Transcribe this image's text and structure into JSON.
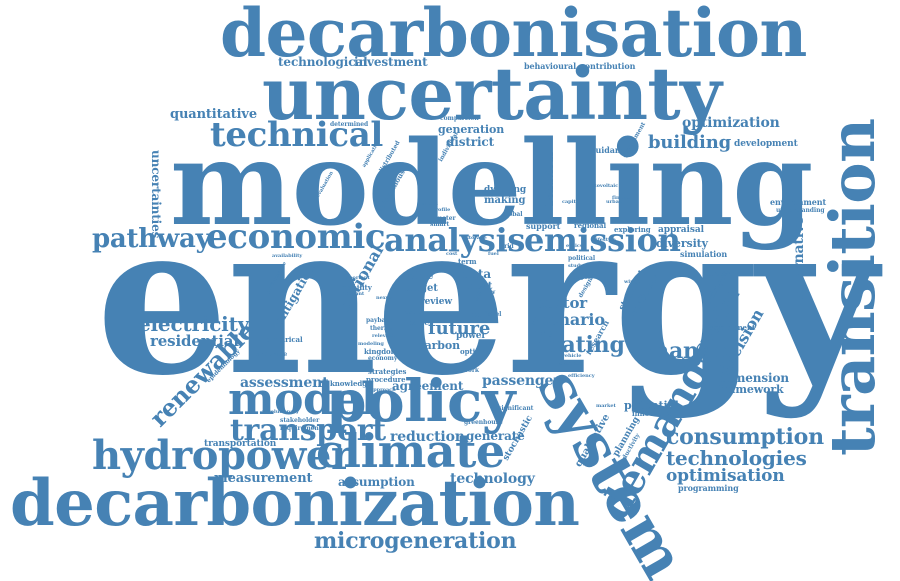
{
  "words": {
    "energy": "energy",
    "modelling": "modelling",
    "uncertainty": "uncertainty",
    "decarbonisation": "decarbonisation",
    "decarbonization": "decarbonization",
    "transition": "transition",
    "system": "system",
    "policy": "policy",
    "model": "model",
    "climate": "climate",
    "hydropower": "hydropower",
    "transport": "transport",
    "technical": "technical",
    "economic": "economic",
    "analysis": "analysis",
    "emission": "emission",
    "pathway": "pathway",
    "demand": "demand",
    "microgeneration": "microgeneration",
    "consumption": "consumption",
    "technologies": "technologies",
    "optimisation": "optimisation",
    "technology": "technology",
    "renewable": "renewable",
    "electricity": "electricity",
    "residential": "residential",
    "assessment": "assessment",
    "measurement": "measurement",
    "transportation": "transportation",
    "assumption": "assumption",
    "reduction": "reduction",
    "generate": "generate",
    "agreement": "agreement",
    "passenger": "passenger",
    "heating": "heating",
    "change": "change",
    "future": "future",
    "scenario": "scenario",
    "sector": "sector",
    "ecuador": "ecuador",
    "decision": "decision",
    "dimension": "dimension",
    "framework": "framework",
    "potential": "potential",
    "innovation": "innovation",
    "building": "building",
    "development": "development",
    "optimization": "optimization",
    "district": "district",
    "generation": "generation",
    "quantitative": "quantitative",
    "technological": "technological",
    "investment": "investment",
    "behavioural": "behavioural",
    "contribution": "contribution",
    "uncertainties": "uncertainties",
    "alternative": "alternative",
    "environment": "environment",
    "understanding": "understanding",
    "diversity": "diversity",
    "simulation": "simulation",
    "appraisal": "appraisal",
    "exploring": "exploring",
    "perspective": "perspective",
    "hydrogen": "hydrogen",
    "deployment": "deployment",
    "national": "national",
    "mitigation": "mitigation",
    "empirical": "empirical",
    "landscape": "landscape",
    "epidemiology": "epidemiology",
    "knowledge": "knowledge",
    "procedure": "procedure",
    "strategies": "strategies",
    "network": "network",
    "carbon": "carbon",
    "power": "power",
    "insight": "insight",
    "research": "research",
    "standard": "standard",
    "challenge": "challenge",
    "value": "value",
    "target": "target",
    "data": "data",
    "heat": "heat",
    "review": "review",
    "paper": "paper",
    "solid": "solid",
    "making": "making",
    "dwelling": "dwelling",
    "support": "support",
    "regional": "regional",
    "behaviour": "behaviour",
    "guidance": "guidance",
    "government": "government",
    "qualitative": "qualitative",
    "planning": "planning",
    "conductivity": "conductivity",
    "programming": "programming",
    "stochastic": "stochastic",
    "significant": "significant",
    "greenhouse": "greenhouse",
    "stakeholder": "stakeholder",
    "requirement": "requirement",
    "revolutionary": "revolutionary",
    "determined": "determined",
    "comparison": "comparison",
    "application": "application",
    "distributed": "distributed",
    "individual": "individual",
    "photovoltaic": "photovoltaic",
    "mobility": "mobility",
    "different": "different",
    "important": "important",
    "kingdom": "kingdom",
    "economy": "economy",
    "optimal": "optimal",
    "political": "political",
    "design": "design",
    "payback": "payback",
    "thermal": "thermal",
    "relevant": "relevant",
    "modeling": "modeling",
    "approach": "approach",
    "result": "result",
    "level": "level",
    "term": "term",
    "time": "time",
    "smart": "smart",
    "meter": "meter",
    "autonomous": "autonomous",
    "global": "global",
    "capital": "capital",
    "grid": "grid",
    "profile": "profile",
    "social": "social",
    "cost": "cost",
    "case": "case",
    "fuel": "fuel",
    "study": "study",
    "evaluation": "evaluation",
    "performance": "performance",
    "availability": "availability",
    "nexus": "nexus",
    "impact": "impact",
    "efficiency": "efficiency",
    "urban": "urban",
    "wind": "wind",
    "market": "market",
    "electric": "electric",
    "vehicle": "vehicle",
    "finance": "finance",
    "ethics": "ethics",
    "low": "low",
    "storage": "storage",
    "lifestyle": "lifestyle"
  },
  "colors": {
    "word": "#4682b4",
    "background": "#ffffff"
  }
}
